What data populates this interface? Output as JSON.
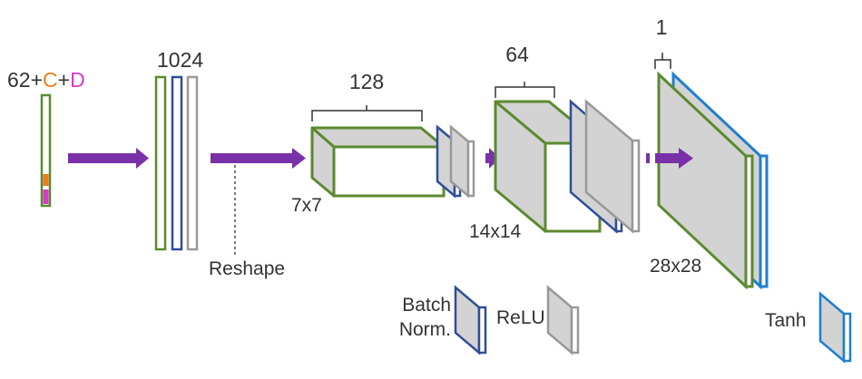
{
  "input": {
    "base": "62+",
    "c": "C",
    "plus": "+",
    "d": "D"
  },
  "dense": {
    "units": "1024"
  },
  "reshape": {
    "label": "Reshape"
  },
  "block1": {
    "channels": "128",
    "size": "7x7"
  },
  "block2": {
    "channels": "64",
    "size": "14x14"
  },
  "block3": {
    "channels": "1",
    "size": "28x28"
  },
  "legend": {
    "batchnorm_line1": "Batch",
    "batchnorm_line2": "Norm.",
    "relu": "ReLU",
    "tanh": "Tanh"
  },
  "colors": {
    "green": "#5b8a2f",
    "blue": "#2f4e9a",
    "gray": "#999999",
    "purple": "#7a30a8",
    "orange": "#f07a1a",
    "magenta": "#d63cc8",
    "fill": "#d3d3d3",
    "tanh_blue": "#1f7fcf"
  }
}
